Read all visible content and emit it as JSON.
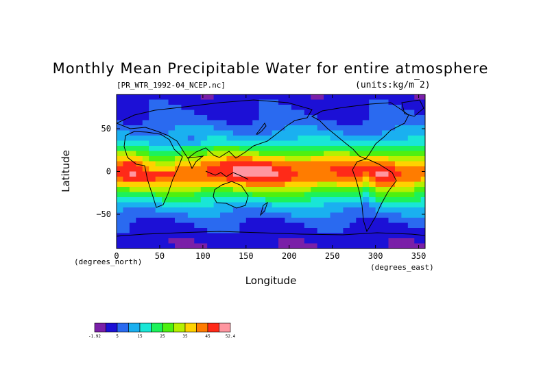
{
  "chart_data": {
    "type": "heatmap",
    "title": "Monthly Mean Precipitable Water for entire atmosphere",
    "subtitle": "[PR_WTR_1992-04_NCEP.nc]",
    "units": "(units:kg/m^2)",
    "xlabel": "Longitude",
    "ylabel": "Latitude",
    "x_unit_label": "(degrees_east)",
    "y_unit_label": "(degrees_north)",
    "xlim": [
      0,
      357.5
    ],
    "ylim": [
      -90,
      90
    ],
    "x_ticks": [
      0,
      50,
      100,
      150,
      200,
      250,
      300,
      350
    ],
    "y_ticks": [
      50,
      0,
      -50
    ],
    "y_tick_labels": [
      "50",
      "0",
      "−50"
    ],
    "grid": false,
    "colorbar": {
      "levels": [
        -1.92,
        0,
        5,
        10,
        15,
        20,
        25,
        30,
        35,
        40,
        45,
        50,
        52.4
      ],
      "colors": [
        "#7a1fa8",
        "#1c10d6",
        "#2a6af0",
        "#1ab0f0",
        "#19e6d6",
        "#1cf25a",
        "#4ef010",
        "#b6f000",
        "#ffd200",
        "#ff7c00",
        "#ff2a18",
        "#ff96a0"
      ],
      "tick_labels": [
        "-1.92",
        "5",
        "15",
        "25",
        "35",
        "45",
        "52.4"
      ]
    },
    "zonal_profile": {
      "lat": [
        -90,
        -80,
        -70,
        -60,
        -50,
        -40,
        -30,
        -20,
        -10,
        0,
        10,
        20,
        30,
        40,
        50,
        60,
        70,
        80,
        90
      ],
      "precipitable_water": [
        1,
        2,
        3,
        5,
        9,
        14,
        21,
        31,
        42,
        46,
        40,
        29,
        19,
        13,
        9,
        6,
        4,
        3,
        2
      ]
    }
  }
}
